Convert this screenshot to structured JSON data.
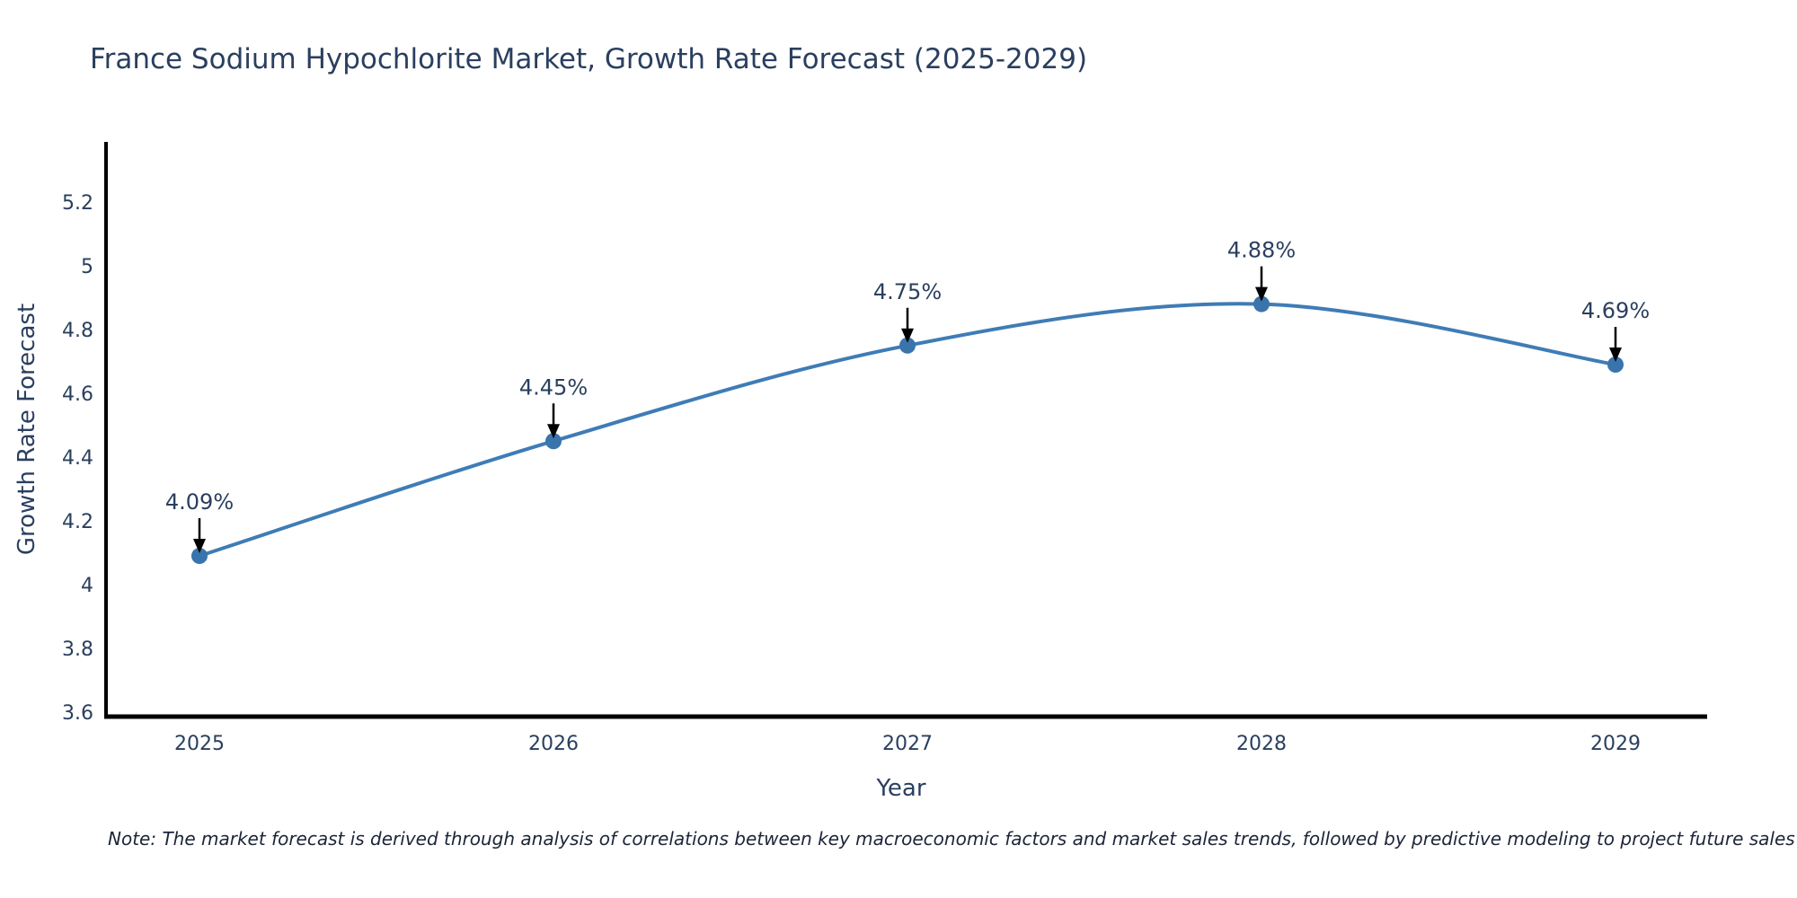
{
  "chart": {
    "title": "France Sodium Hypochlorite Market, Growth Rate Forecast (2025-2029)",
    "xlabel": "Year",
    "ylabel": "Growth Rate Forecast",
    "note": "Note: The market forecast is derived through analysis of correlations between key macroeconomic factors and market sales trends, followed by predictive modeling to project future sales"
  },
  "chart_data": {
    "type": "line",
    "title": "France Sodium Hypochlorite Market, Growth Rate Forecast (2025-2029)",
    "xlabel": "Year",
    "ylabel": "Growth Rate Forecast",
    "categories": [
      "2025",
      "2026",
      "2027",
      "2028",
      "2029"
    ],
    "series": [
      {
        "name": "Growth Rate Forecast",
        "values": [
          4.09,
          4.45,
          4.75,
          4.88,
          4.69
        ]
      }
    ],
    "point_labels": [
      "4.09%",
      "4.45%",
      "4.75%",
      "4.88%",
      "4.69%"
    ],
    "yticks": [
      3.6,
      3.8,
      4,
      4.2,
      4.4,
      4.6,
      4.8,
      5,
      5.2
    ],
    "ylim": [
      3.59,
      5.38
    ],
    "grid": false,
    "legend_position": "none",
    "line_shape": "spline",
    "annotations": "value labels with downward arrows above each point",
    "colors": {
      "line": "#3f7cb6",
      "marker": "#3a74ad",
      "axis": "#000000",
      "text": "#2a3f5f",
      "arrow": "#000000",
      "background": "#ffffff"
    }
  }
}
